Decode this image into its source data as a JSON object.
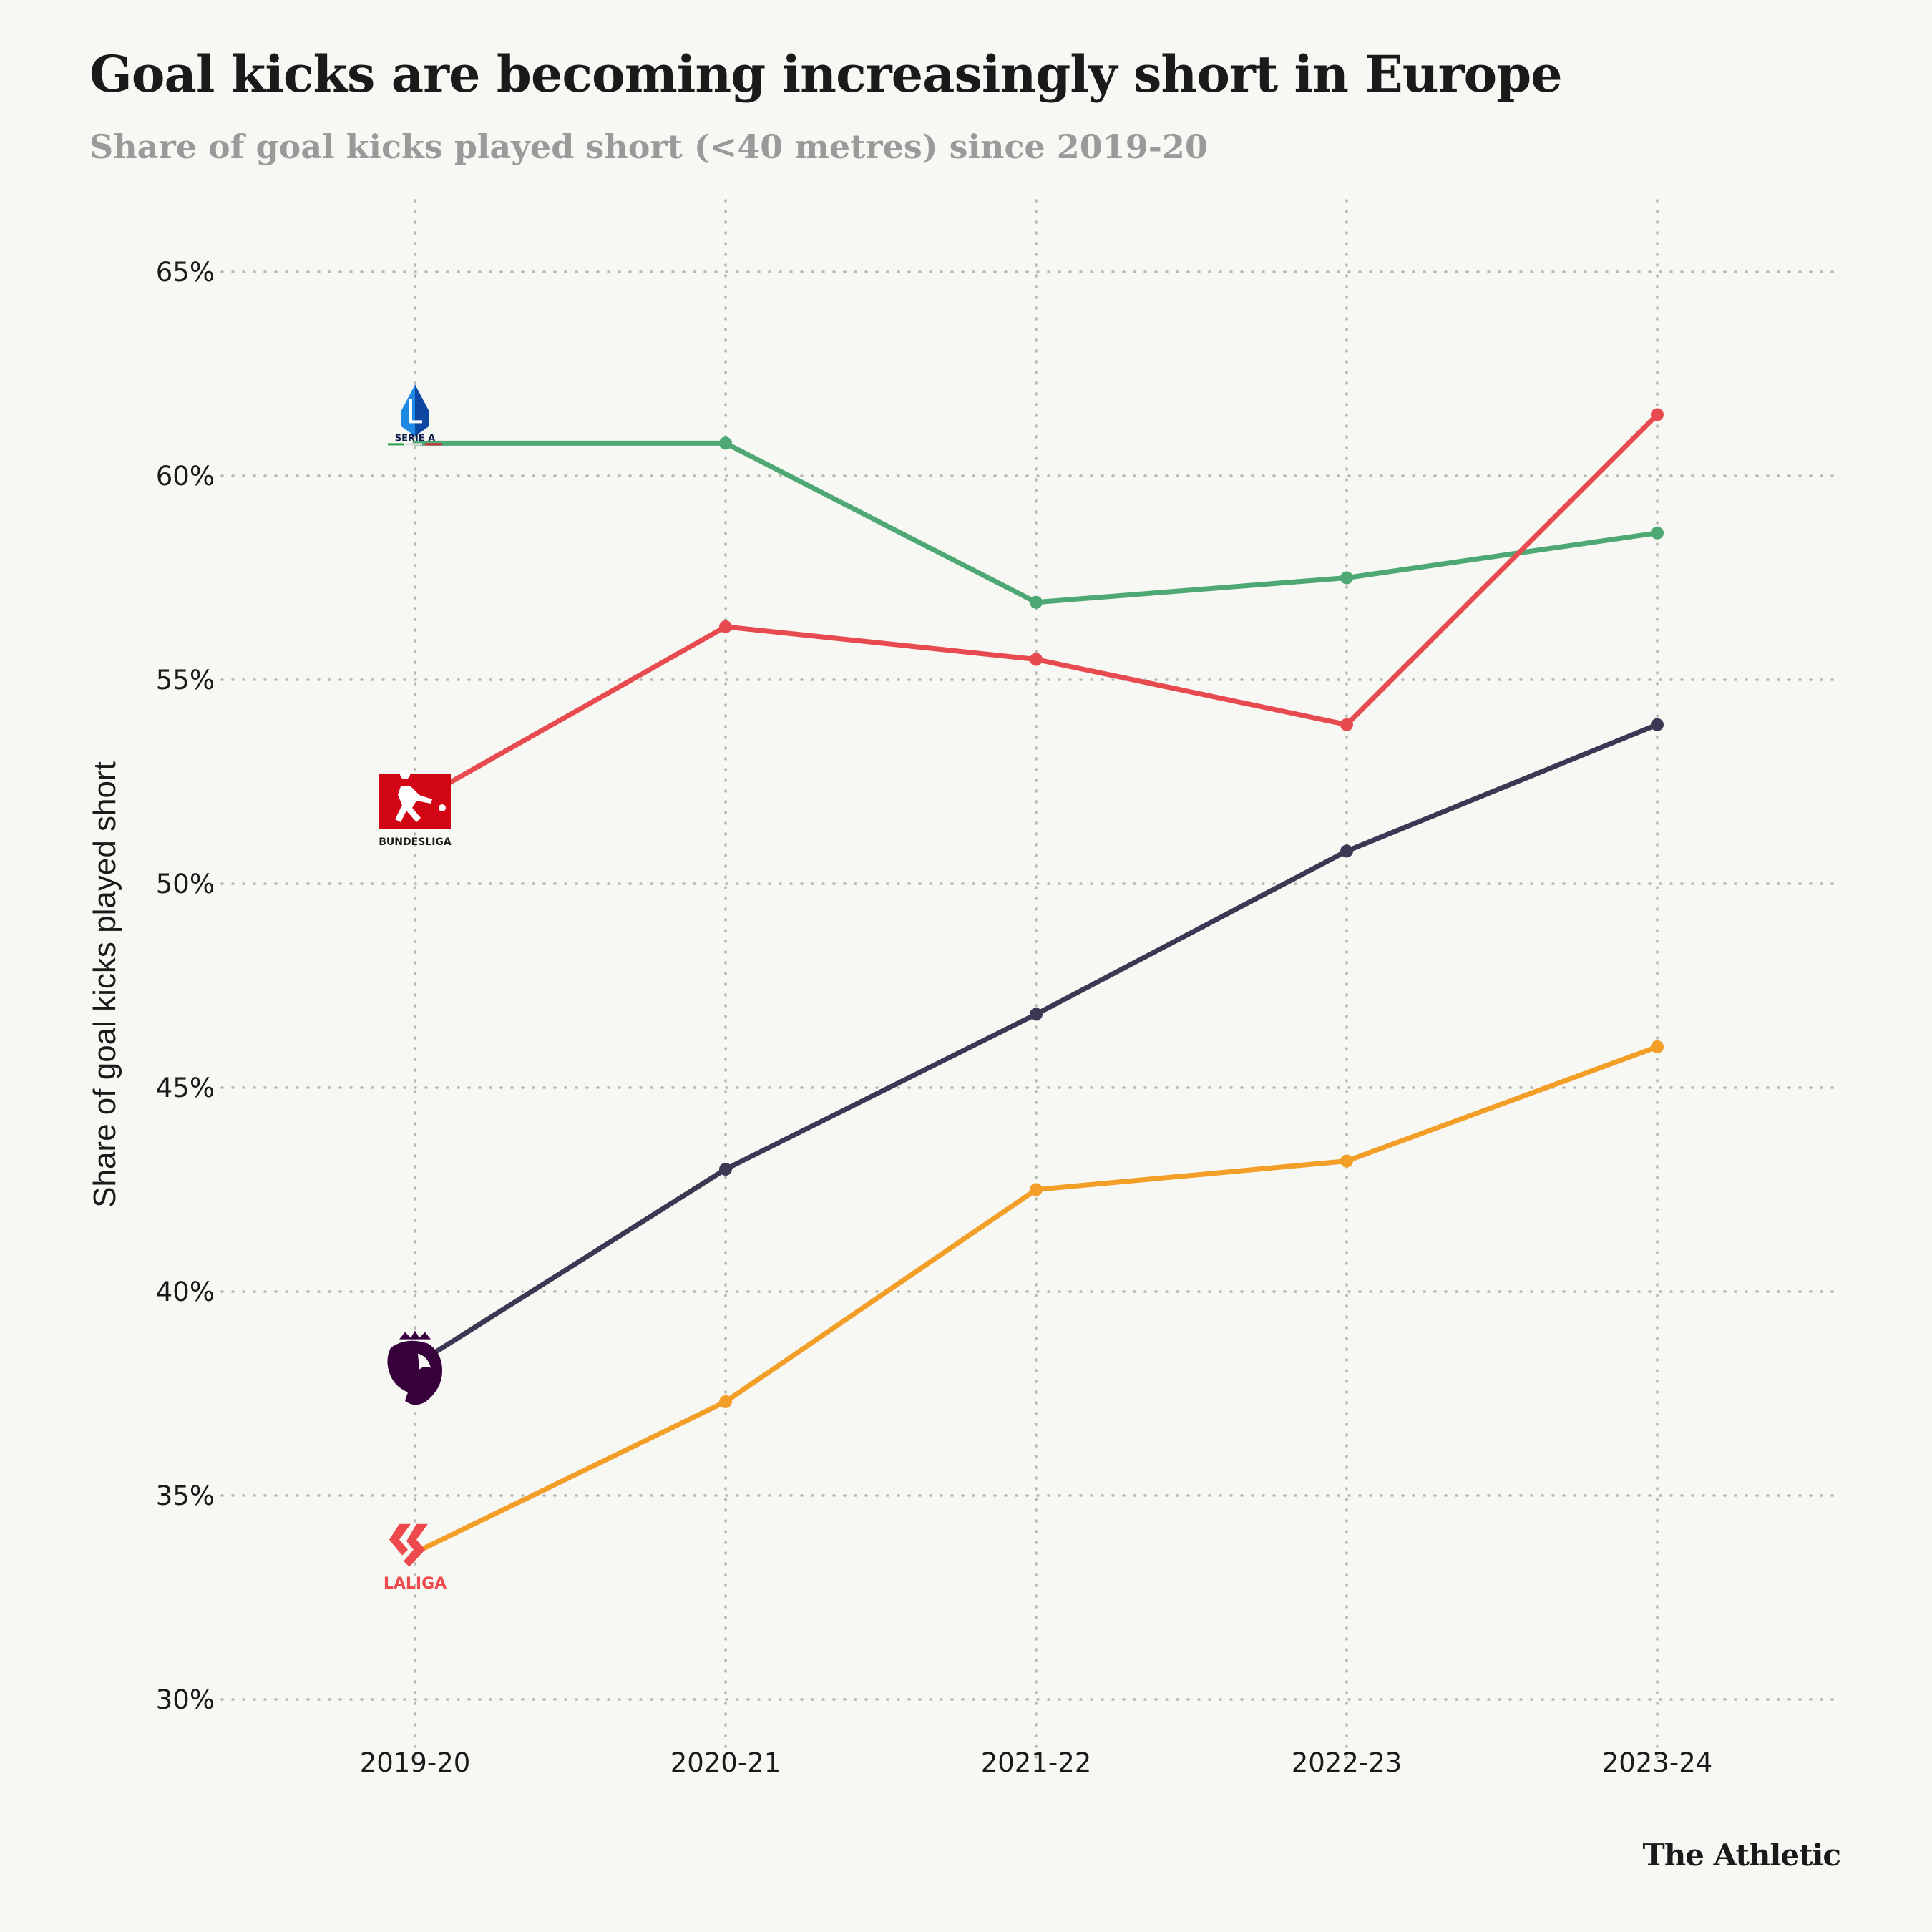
{
  "header": {
    "title": "Goal kicks are becoming increasingly short in Europe",
    "subtitle": "Share of goal kicks played short (<40 metres) since 2019-20"
  },
  "credit": "The Athletic",
  "chart_data": {
    "type": "line",
    "title": "Goal kicks are becoming increasingly short in Europe",
    "subtitle": "Share of goal kicks played short (<40 metres) since 2019-20",
    "xlabel": "",
    "ylabel": "Share of goal kicks played short",
    "categories": [
      "2019-20",
      "2020-21",
      "2021-22",
      "2022-23",
      "2023-24"
    ],
    "y_ticks": [
      30,
      35,
      40,
      45,
      50,
      55,
      60,
      65
    ],
    "y_tick_labels": [
      "30%",
      "35%",
      "40%",
      "45%",
      "50%",
      "55%",
      "60%",
      "65%"
    ],
    "ylim": [
      28.3,
      66.7
    ],
    "grid": true,
    "legend": "none (league logos at start of each line)",
    "series": [
      {
        "name": "Serie A",
        "logo": "serie-a-logo",
        "logo_label": "SERIE A",
        "color": "#4ea874",
        "values": [
          60.8,
          60.8,
          56.9,
          57.5,
          58.6
        ]
      },
      {
        "name": "Bundesliga",
        "logo": "bundesliga-logo",
        "logo_label": "BUNDESLIGA",
        "color": "#e84b4f",
        "values": [
          52.0,
          56.3,
          55.5,
          53.9,
          61.5
        ]
      },
      {
        "name": "Premier League",
        "logo": "premier-league-logo",
        "color": "#3d3754",
        "values": [
          38.2,
          43.0,
          46.8,
          50.8,
          53.9
        ]
      },
      {
        "name": "LaLiga",
        "logo": "laliga-logo",
        "logo_label": "LALIGA",
        "color": "#f29e27",
        "values": [
          33.6,
          37.3,
          42.5,
          43.2,
          46.0
        ]
      }
    ]
  }
}
